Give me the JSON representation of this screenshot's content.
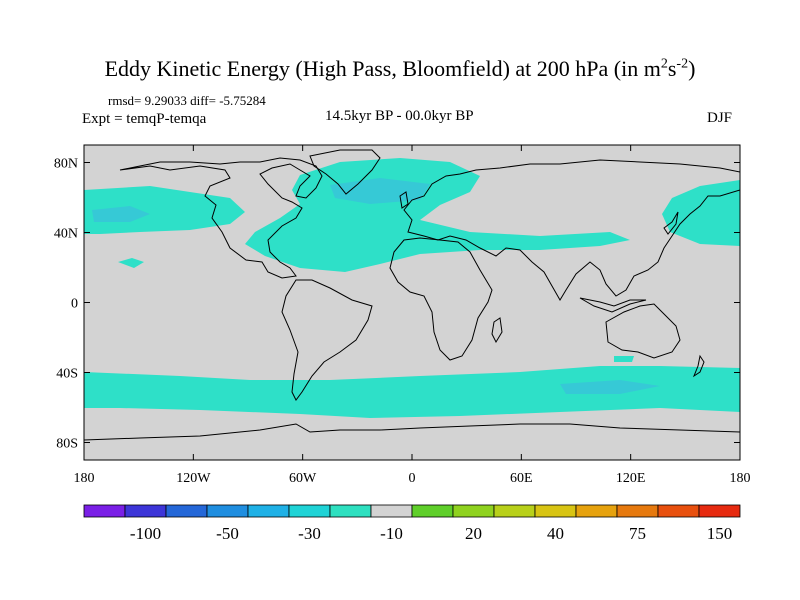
{
  "title": {
    "main": "Eddy Kinetic Energy (High Pass, Bloomfield) at 200 hPa (in m",
    "sup1": "2",
    "mid": "s",
    "sup2": "-2",
    "end": ")"
  },
  "stats": "rmsd= 9.29033 diff= -5.75284",
  "expt": "Expt = temqP-temqa",
  "period": "14.5kyr BP - 00.0kyr BP",
  "season": "DJF",
  "map": {
    "lat_labels": [
      {
        "text": "80N",
        "lat": 80
      },
      {
        "text": "40N",
        "lat": 40
      },
      {
        "text": "0",
        "lat": 0
      },
      {
        "text": "40S",
        "lat": -40
      },
      {
        "text": "80S",
        "lat": -80
      }
    ],
    "lon_labels": [
      {
        "text": "180",
        "lon": -180
      },
      {
        "text": "120W",
        "lon": -120
      },
      {
        "text": "60W",
        "lon": -60
      },
      {
        "text": "0",
        "lon": 0
      },
      {
        "text": "60E",
        "lon": 60
      },
      {
        "text": "120E",
        "lon": 120
      },
      {
        "text": "180",
        "lon": 180
      }
    ],
    "background_color": "#d3d3d3",
    "anomaly_color": "#2ee0c8",
    "anomaly_strong_color": "#36c9d6",
    "coast_color": "#000000"
  },
  "colorbar": {
    "colors": [
      "#7a1fe6",
      "#3d35d8",
      "#2467d8",
      "#1f8ee0",
      "#1fb1e6",
      "#1fd3d6",
      "#2ee0c0",
      "#d3d3d3",
      "#5fcf2a",
      "#8fd21f",
      "#b8d01a",
      "#d8c413",
      "#e6a20e",
      "#e6790e",
      "#e8500e",
      "#e62a10"
    ],
    "labels": [
      {
        "text": "-100",
        "boundary": 2
      },
      {
        "text": "-50",
        "boundary": 4
      },
      {
        "text": "-30",
        "boundary": 6
      },
      {
        "text": "-10",
        "boundary": 8
      },
      {
        "text": "20",
        "boundary": 10
      },
      {
        "text": "40",
        "boundary": 12
      },
      {
        "text": "75",
        "boundary": 14
      },
      {
        "text": "150",
        "boundary": 16
      }
    ]
  }
}
